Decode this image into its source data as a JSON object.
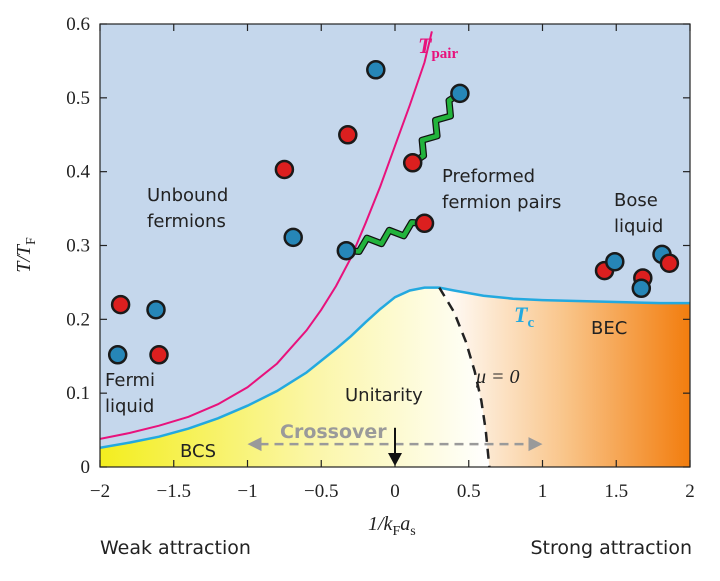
{
  "chart_data": {
    "type": "phase-diagram",
    "xlim": [
      -2,
      2
    ],
    "ylim": [
      0,
      0.6
    ],
    "x_ticks": [
      "−2",
      "−1.5",
      "−1",
      "−0.5",
      "0",
      "0.5",
      "1",
      "1.5",
      "2"
    ],
    "y_ticks": [
      "0",
      "0.1",
      "0.2",
      "0.3",
      "0.4",
      "0.5",
      "0.6"
    ],
    "x_tick_values": [
      -2,
      -1.5,
      -1,
      -0.5,
      0,
      0.5,
      1,
      1.5,
      2
    ],
    "y_tick_values": [
      0,
      0.1,
      0.2,
      0.3,
      0.4,
      0.5,
      0.6
    ],
    "xlabel": {
      "main": "1/k",
      "sub1": "F",
      "mid": "a",
      "sub2": "s"
    },
    "ylabel": {
      "main": "T/T",
      "sub": "F"
    },
    "bottom_labels": {
      "left": "Weak attraction",
      "right": "Strong attraction"
    },
    "curve_labels": {
      "tpair": {
        "main": "T",
        "sub": "pair"
      },
      "tc": {
        "main": "T",
        "sub": "c"
      },
      "mu": "μ = 0"
    },
    "region_labels": {
      "unbound": [
        "Unbound",
        "fermions"
      ],
      "preformed": [
        "Preformed",
        "fermion pairs"
      ],
      "bose": [
        "Bose",
        "liquid"
      ],
      "fermi": [
        "Fermi",
        "liquid"
      ],
      "bcs": "BCS",
      "bec": "BEC",
      "unitarity": "Unitarity",
      "crossover": "Crossover"
    },
    "tpair_curve": [
      [
        -2,
        0.038
      ],
      [
        -1.8,
        0.046
      ],
      [
        -1.6,
        0.056
      ],
      [
        -1.4,
        0.068
      ],
      [
        -1.2,
        0.085
      ],
      [
        -1.0,
        0.108
      ],
      [
        -0.8,
        0.14
      ],
      [
        -0.6,
        0.185
      ],
      [
        -0.5,
        0.213
      ],
      [
        -0.4,
        0.245
      ],
      [
        -0.3,
        0.283
      ],
      [
        -0.2,
        0.33
      ],
      [
        -0.1,
        0.38
      ],
      [
        0.0,
        0.435
      ],
      [
        0.1,
        0.49
      ],
      [
        0.2,
        0.548
      ],
      [
        0.25,
        0.59
      ]
    ],
    "tc_curve": [
      [
        -2,
        0.026
      ],
      [
        -1.8,
        0.033
      ],
      [
        -1.6,
        0.041
      ],
      [
        -1.4,
        0.052
      ],
      [
        -1.2,
        0.066
      ],
      [
        -1.0,
        0.083
      ],
      [
        -0.8,
        0.103
      ],
      [
        -0.6,
        0.128
      ],
      [
        -0.4,
        0.16
      ],
      [
        -0.3,
        0.177
      ],
      [
        -0.2,
        0.196
      ],
      [
        -0.1,
        0.214
      ],
      [
        0.0,
        0.23
      ],
      [
        0.1,
        0.239
      ],
      [
        0.2,
        0.243
      ],
      [
        0.3,
        0.243
      ],
      [
        0.4,
        0.239
      ],
      [
        0.6,
        0.232
      ],
      [
        0.8,
        0.228
      ],
      [
        1.0,
        0.226
      ],
      [
        1.2,
        0.225
      ],
      [
        1.4,
        0.224
      ],
      [
        1.6,
        0.223
      ],
      [
        1.8,
        0.222
      ],
      [
        2.0,
        0.222
      ]
    ],
    "mu_zero_curve": [
      [
        0.3,
        0.243
      ],
      [
        0.4,
        0.21
      ],
      [
        0.48,
        0.17
      ],
      [
        0.54,
        0.13
      ],
      [
        0.585,
        0.09
      ],
      [
        0.615,
        0.05
      ],
      [
        0.63,
        0.02
      ],
      [
        0.64,
        0.0
      ]
    ],
    "unitarity_arrow": {
      "x": 0,
      "y_from": 0.045,
      "y_to": 0.0
    },
    "crossover_arrow": {
      "x_from": -1.0,
      "x_to": 1.0,
      "y": 0.031
    },
    "particles": [
      {
        "x": -1.86,
        "y": 0.22,
        "color": "red"
      },
      {
        "x": -1.62,
        "y": 0.213,
        "color": "blue"
      },
      {
        "x": -1.88,
        "y": 0.152,
        "color": "blue"
      },
      {
        "x": -1.6,
        "y": 0.152,
        "color": "red"
      },
      {
        "x": -0.75,
        "y": 0.403,
        "color": "red"
      },
      {
        "x": -0.69,
        "y": 0.311,
        "color": "blue"
      },
      {
        "x": -0.32,
        "y": 0.45,
        "color": "red"
      },
      {
        "x": -0.13,
        "y": 0.538,
        "color": "blue"
      },
      {
        "x": 1.42,
        "y": 0.266,
        "color": "red"
      },
      {
        "x": 1.49,
        "y": 0.278,
        "color": "blue"
      },
      {
        "x": 1.68,
        "y": 0.256,
        "color": "red"
      },
      {
        "x": 1.67,
        "y": 0.242,
        "color": "blue"
      },
      {
        "x": 1.81,
        "y": 0.288,
        "color": "blue"
      },
      {
        "x": 1.86,
        "y": 0.276,
        "color": "red"
      }
    ],
    "pairs": [
      {
        "x1": 0.12,
        "y1": 0.412,
        "x2": 0.44,
        "y2": 0.506,
        "c1": "red",
        "c2": "blue"
      },
      {
        "x1": -0.33,
        "y1": 0.293,
        "x2": 0.2,
        "y2": 0.33,
        "c1": "blue",
        "c2": "red"
      }
    ],
    "colors": {
      "background": "#c5d7ec",
      "tpair": "#e8127c",
      "tc": "#23a9df",
      "particle_red": "#dc1f1f",
      "particle_blue": "#2686b7",
      "bond": "#22b33c",
      "bcs_fill": "#f3ee1e",
      "bec_fill": "#f27d0e",
      "crossover": "#9a9a9a",
      "mu_line": "#222222"
    }
  }
}
